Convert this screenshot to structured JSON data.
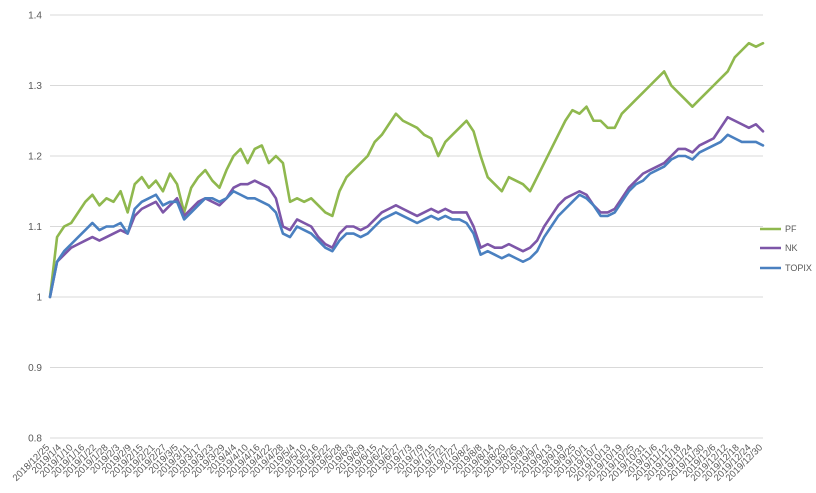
{
  "chart_data": {
    "type": "line",
    "title": "",
    "xlabel": "",
    "ylabel": "",
    "ylim": [
      0.8,
      1.4
    ],
    "yticks": [
      "0.8",
      "0.9",
      "1",
      "1.1",
      "1.2",
      "1.3",
      "1.4"
    ],
    "grid": "horizontal",
    "legend_position": "right",
    "xtick_labels": [
      "2018/12/25",
      "2019/1/4",
      "2019/1/10",
      "2019/1/16",
      "2019/1/22",
      "2019/1/28",
      "2019/2/3",
      "2019/2/9",
      "2019/2/15",
      "2019/2/21",
      "2019/2/27",
      "2019/3/5",
      "2019/3/11",
      "2019/3/17",
      "2019/3/23",
      "2019/3/29",
      "2019/4/4",
      "2019/4/10",
      "2019/4/16",
      "2019/4/22",
      "2019/4/28",
      "2019/5/4",
      "2019/5/10",
      "2019/5/16",
      "2019/5/22",
      "2019/5/28",
      "2019/6/3",
      "2019/6/9",
      "2019/6/15",
      "2019/6/21",
      "2019/6/27",
      "2019/7/3",
      "2019/7/9",
      "2019/7/15",
      "2019/7/21",
      "2019/7/27",
      "2019/8/2",
      "2019/8/8",
      "2019/8/14",
      "2019/8/20",
      "2019/8/26",
      "2019/9/1",
      "2019/9/7",
      "2019/9/13",
      "2019/9/19",
      "2019/9/25",
      "2019/10/1",
      "2019/10/7",
      "2019/10/13",
      "2019/10/19",
      "2019/10/25",
      "2019/10/31",
      "2019/11/6",
      "2019/11/12",
      "2019/11/18",
      "2019/11/24",
      "2019/11/30",
      "2019/12/6",
      "2019/12/12",
      "2019/12/18",
      "2019/12/24",
      "2019/12/30"
    ],
    "series": [
      {
        "name": "PF",
        "color": "#8fb84e",
        "values": [
          1.0,
          1.085,
          1.1,
          1.105,
          1.12,
          1.135,
          1.145,
          1.13,
          1.14,
          1.135,
          1.15,
          1.12,
          1.16,
          1.17,
          1.155,
          1.165,
          1.15,
          1.175,
          1.16,
          1.12,
          1.155,
          1.17,
          1.18,
          1.165,
          1.155,
          1.18,
          1.2,
          1.21,
          1.19,
          1.21,
          1.215,
          1.19,
          1.2,
          1.19,
          1.135,
          1.14,
          1.135,
          1.14,
          1.13,
          1.12,
          1.115,
          1.15,
          1.17,
          1.18,
          1.19,
          1.2,
          1.22,
          1.23,
          1.245,
          1.26,
          1.25,
          1.245,
          1.24,
          1.23,
          1.225,
          1.2,
          1.22,
          1.23,
          1.24,
          1.25,
          1.235,
          1.2,
          1.17,
          1.16,
          1.15,
          1.17,
          1.165,
          1.16,
          1.15,
          1.17,
          1.19,
          1.21,
          1.23,
          1.25,
          1.265,
          1.26,
          1.27,
          1.25,
          1.25,
          1.24,
          1.24,
          1.26,
          1.27,
          1.28,
          1.29,
          1.3,
          1.31,
          1.32,
          1.3,
          1.29,
          1.28,
          1.27,
          1.28,
          1.29,
          1.3,
          1.31,
          1.32,
          1.34,
          1.35,
          1.36,
          1.355,
          1.36
        ]
      },
      {
        "name": "NK",
        "color": "#7d56a8",
        "values": [
          1.0,
          1.05,
          1.06,
          1.07,
          1.075,
          1.08,
          1.085,
          1.08,
          1.085,
          1.09,
          1.095,
          1.09,
          1.115,
          1.125,
          1.13,
          1.135,
          1.12,
          1.13,
          1.14,
          1.115,
          1.125,
          1.135,
          1.14,
          1.135,
          1.13,
          1.14,
          1.155,
          1.16,
          1.16,
          1.165,
          1.16,
          1.155,
          1.14,
          1.1,
          1.095,
          1.11,
          1.105,
          1.1,
          1.085,
          1.075,
          1.07,
          1.09,
          1.1,
          1.1,
          1.095,
          1.1,
          1.11,
          1.12,
          1.125,
          1.13,
          1.125,
          1.12,
          1.115,
          1.12,
          1.125,
          1.12,
          1.125,
          1.12,
          1.12,
          1.12,
          1.1,
          1.07,
          1.075,
          1.07,
          1.07,
          1.075,
          1.07,
          1.065,
          1.07,
          1.08,
          1.1,
          1.115,
          1.13,
          1.14,
          1.145,
          1.15,
          1.145,
          1.13,
          1.12,
          1.12,
          1.125,
          1.14,
          1.155,
          1.165,
          1.175,
          1.18,
          1.185,
          1.19,
          1.2,
          1.21,
          1.21,
          1.205,
          1.215,
          1.22,
          1.225,
          1.24,
          1.255,
          1.25,
          1.245,
          1.24,
          1.245,
          1.235
        ]
      },
      {
        "name": "TOPIX",
        "color": "#4a80c0",
        "values": [
          1.0,
          1.05,
          1.065,
          1.075,
          1.085,
          1.095,
          1.105,
          1.095,
          1.1,
          1.1,
          1.105,
          1.09,
          1.125,
          1.135,
          1.14,
          1.145,
          1.13,
          1.135,
          1.135,
          1.11,
          1.12,
          1.13,
          1.14,
          1.14,
          1.135,
          1.14,
          1.15,
          1.145,
          1.14,
          1.14,
          1.135,
          1.13,
          1.12,
          1.09,
          1.085,
          1.1,
          1.095,
          1.09,
          1.08,
          1.07,
          1.065,
          1.08,
          1.09,
          1.09,
          1.085,
          1.09,
          1.1,
          1.11,
          1.115,
          1.12,
          1.115,
          1.11,
          1.105,
          1.11,
          1.115,
          1.11,
          1.115,
          1.11,
          1.11,
          1.105,
          1.09,
          1.06,
          1.065,
          1.06,
          1.055,
          1.06,
          1.055,
          1.05,
          1.055,
          1.065,
          1.085,
          1.1,
          1.115,
          1.125,
          1.135,
          1.145,
          1.14,
          1.13,
          1.115,
          1.115,
          1.12,
          1.135,
          1.15,
          1.16,
          1.165,
          1.175,
          1.18,
          1.185,
          1.195,
          1.2,
          1.2,
          1.195,
          1.205,
          1.21,
          1.215,
          1.22,
          1.23,
          1.225,
          1.22,
          1.22,
          1.22,
          1.215
        ]
      }
    ]
  }
}
